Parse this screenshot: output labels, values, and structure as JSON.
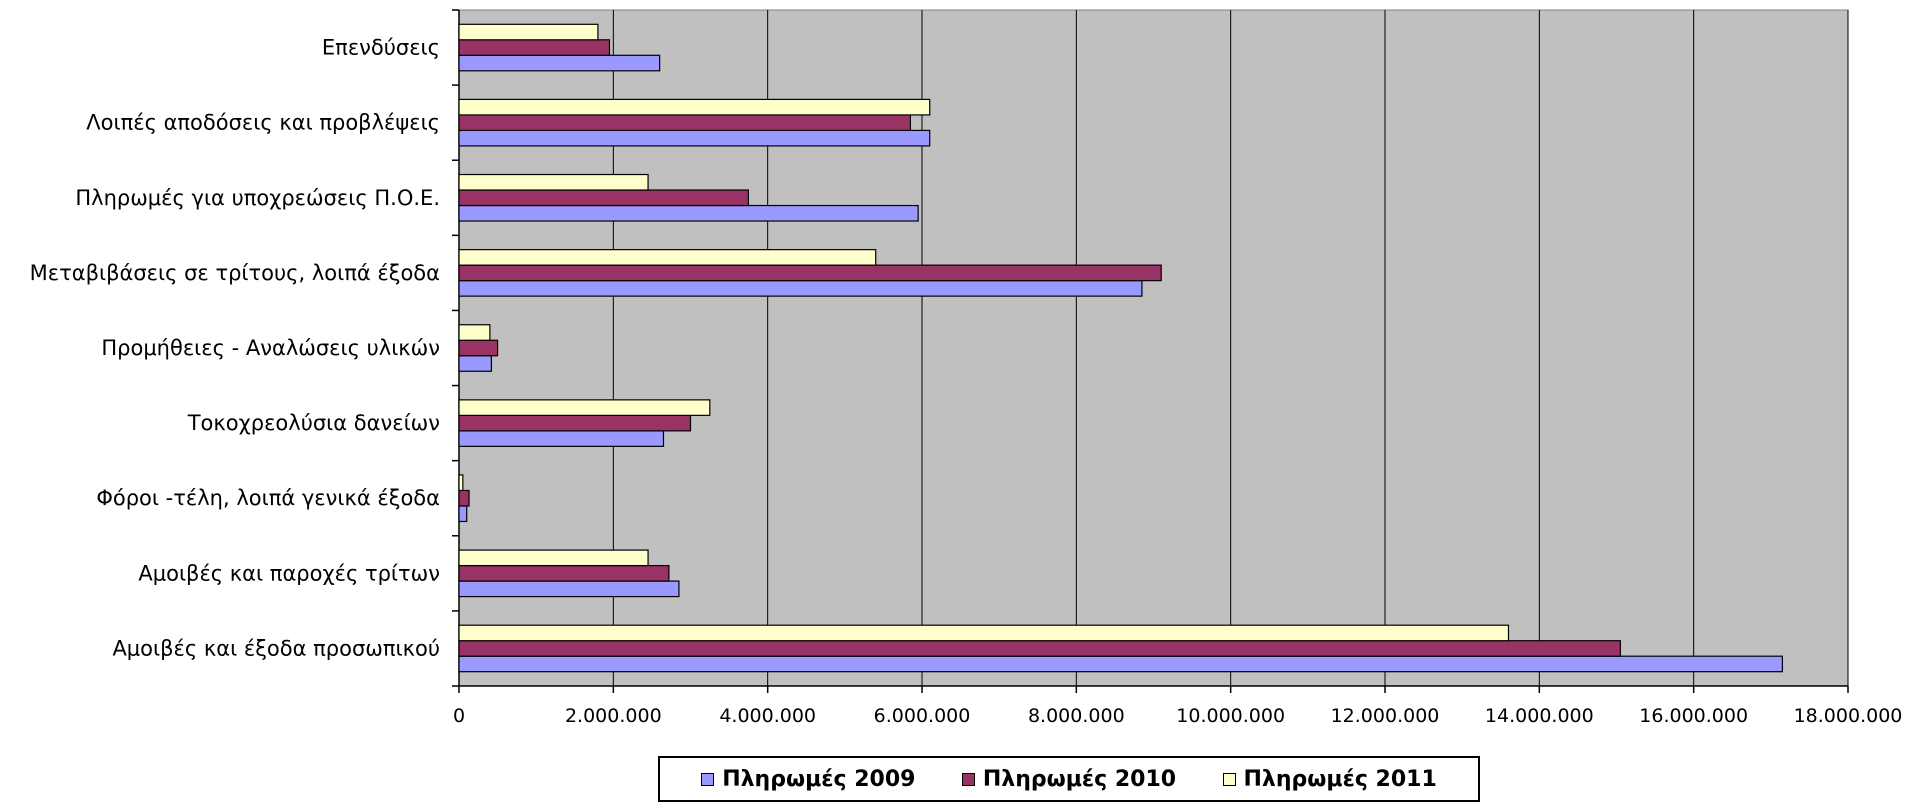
{
  "chart_data": {
    "type": "bar",
    "orientation": "horizontal",
    "categories": [
      "Επενδύσεις",
      "Λοιπές αποδόσεις και προβλέψεις",
      "Πληρωμές για υποχρεώσεις Π.Ο.Ε.",
      "Μεταβιβάσεις σε τρίτους, λοιπά έξοδα",
      "Προμήθειες - Αναλώσεις υλικών",
      "Τοκοχρεολύσια δανείων",
      "Φόροι -τέλη, λοιπά  γενικά έξοδα",
      "Αμοιβές και παροχές τρίτων",
      "Αμοιβές και έξοδα προσωπικού"
    ],
    "series": [
      {
        "name": "Πληρωμές 2009",
        "color": "#9999ff",
        "values": [
          2600000,
          6100000,
          5950000,
          8850000,
          420000,
          2650000,
          100000,
          2850000,
          17150000
        ]
      },
      {
        "name": "Πληρωμές 2010",
        "color": "#993366",
        "values": [
          1950000,
          5850000,
          3750000,
          9100000,
          500000,
          3000000,
          130000,
          2720000,
          15050000
        ]
      },
      {
        "name": "Πληρωμές 2011",
        "color": "#ffffcc",
        "values": [
          1800000,
          6100000,
          2450000,
          5400000,
          400000,
          3250000,
          50000,
          2450000,
          13600000
        ]
      }
    ],
    "xlim": [
      0,
      18000000
    ],
    "xticks": [
      0,
      2000000,
      4000000,
      6000000,
      8000000,
      10000000,
      12000000,
      14000000,
      16000000,
      18000000
    ],
    "xtick_labels": [
      "0",
      "2.000.000",
      "4.000.000",
      "6.000.000",
      "8.000.000",
      "10.000.000",
      "12.000.000",
      "14.000.000",
      "16.000.000",
      "18.000.000"
    ],
    "grid": true,
    "plot_background": "#c0c0c0",
    "legend_position": "bottom"
  }
}
